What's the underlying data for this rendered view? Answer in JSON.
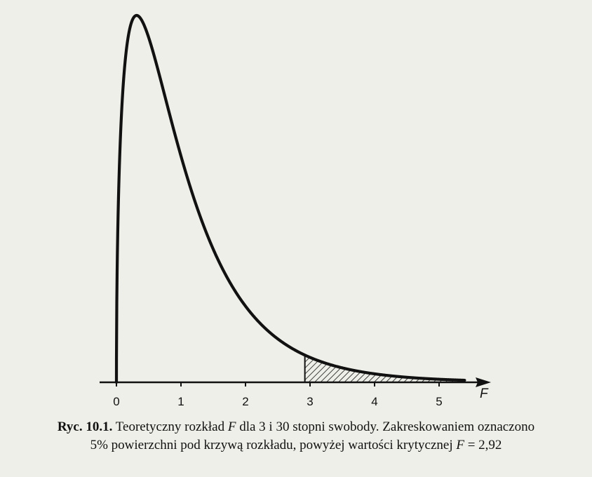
{
  "chart_data": {
    "type": "line",
    "distribution": "F",
    "df1": 3,
    "df2": 30,
    "critical_value": 2.92,
    "shaded_region": {
      "from": 2.92,
      "to": 5.4,
      "area_percent": 5,
      "pattern": "diagonal hatch"
    },
    "x_axis_variable": "F",
    "xticks": [
      0,
      1,
      2,
      3,
      4,
      5
    ],
    "xlim": [
      0,
      5.5
    ],
    "grid": false,
    "legend": "none",
    "stroke_color": "#111111"
  },
  "caption": {
    "prefix": "Ryc. 10.1.",
    "line1_part1": " Teoretyczny rozkład ",
    "line1_var": "F",
    "line1_part2": " dla 3 i 30 stopni swobody. Zakreskowaniem oznaczono",
    "line2_part1": "5% powierzchni pod krzywą rozkładu, powyżej wartości krytycznej ",
    "line2_var": "F",
    "line2_part2": " = 2,92"
  }
}
